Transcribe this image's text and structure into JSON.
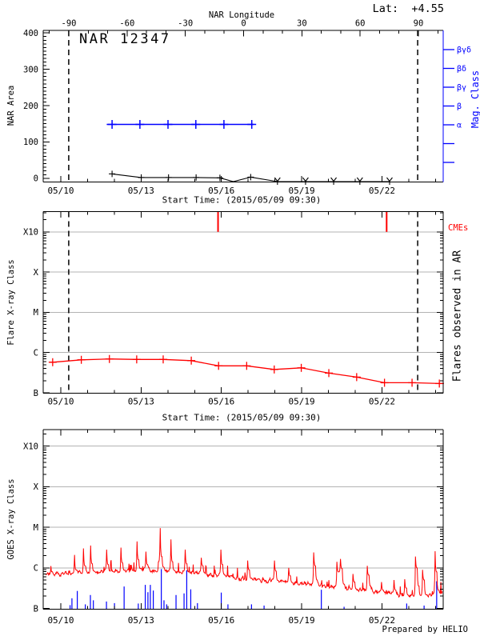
{
  "colors": {
    "accent_red": "#ff0000",
    "accent_blue": "#0000ff",
    "grid_gray": "#b3b3b3",
    "axis_black": "#000000"
  },
  "header": {
    "top_axis_label": "NAR Longitude",
    "latitude_annotation": "Lat:  +4.55"
  },
  "time_axis": {
    "date_tick_labels": [
      "05/10",
      "05/13",
      "05/16",
      "05/19",
      "05/22"
    ],
    "major_tick_days": [
      0.604,
      3.604,
      6.604,
      9.604,
      12.604
    ],
    "minor_tick_interval_days": 1,
    "start_time_label": "Start Time: (2015/05/09 09:30)"
  },
  "chart_data": [
    {
      "type": "line",
      "name": "nar-area-panel",
      "title": "NAR 12347",
      "ylabel": "NAR Area",
      "ylim": [
        0,
        400
      ],
      "yticks": [
        0,
        100,
        200,
        300,
        400
      ],
      "top_axis": {
        "label": "NAR Longitude",
        "ticks_deg": [
          -90,
          -60,
          -30,
          0,
          30,
          60,
          90
        ],
        "minor_step_deg": 10
      },
      "right_axis": {
        "label": "Mag. Class",
        "classes": [
          "βγδ",
          "βδ",
          "βγ",
          "β",
          "α"
        ]
      },
      "limb_crossing_dashed_days": [
        0.9,
        13.94
      ],
      "xlabel": "Start Time: (2015/05/09 09:30)",
      "series": [
        {
          "name": "nar-area",
          "color": "#000000",
          "marker": "plus",
          "points_day_area_flag": [
            [
              2.52,
              12,
              1
            ],
            [
              3.61,
              2,
              1
            ],
            [
              4.63,
              2,
              1
            ],
            [
              5.66,
              2,
              1
            ],
            [
              6.55,
              1,
              1
            ],
            [
              7.05,
              0,
              0
            ],
            [
              7.7,
              3,
              1
            ],
            [
              8.7,
              0,
              2
            ],
            [
              9.75,
              0,
              2
            ],
            [
              10.8,
              0,
              2
            ],
            [
              11.78,
              0,
              2
            ],
            [
              12.89,
              0,
              2
            ]
          ]
        },
        {
          "name": "mag-class",
          "color": "#0000ff",
          "class_value": "α",
          "line_days": [
            2.32,
            7.81
          ],
          "marker_days": [
            2.52,
            3.56,
            4.61,
            5.65,
            6.7,
            7.74
          ]
        }
      ]
    },
    {
      "type": "line",
      "name": "flare-panel",
      "ylabel": "Flare X-ray Class",
      "right_label": "Flares observed in AR",
      "cme_label": "CMEs",
      "y_class_ticks": [
        "B",
        "C",
        "M",
        "X",
        "X10"
      ],
      "line_start_day_logflux": [
        0.18,
        -6.24
      ],
      "line_end_day_logflux": [
        14.92,
        -6.77
      ],
      "flare_points_day_logflux": [
        [
          0.3,
          -6.24
        ],
        [
          1.37,
          -6.18
        ],
        [
          2.42,
          -6.16
        ],
        [
          3.44,
          -6.17
        ],
        [
          4.43,
          -6.17
        ],
        [
          5.48,
          -6.2
        ],
        [
          6.5,
          -6.33
        ],
        [
          7.55,
          -6.33
        ],
        [
          8.58,
          -6.42
        ],
        [
          9.59,
          -6.38
        ],
        [
          10.62,
          -6.51
        ],
        [
          11.66,
          -6.61
        ],
        [
          12.7,
          -6.75
        ],
        [
          13.73,
          -6.75
        ],
        [
          14.75,
          -6.77
        ]
      ],
      "cme_days": [
        6.48,
        12.78
      ],
      "limb_crossing_dashed_days": [
        0.9,
        13.94
      ],
      "xlabel": "Start Time: (2015/05/09 09:30)"
    },
    {
      "type": "line",
      "name": "goes-panel",
      "ylabel": "GOES X-ray Class",
      "y_class_ticks": [
        "B",
        "C",
        "M",
        "X",
        "X10"
      ],
      "credit": "Prepared by HELIO",
      "goes_xray_logflux": {
        "start_day": 0.05,
        "step_day": 0.0667,
        "noise_amplitude_log10": 0.035,
        "needle_amplitude_log10": 0.3,
        "noise_subdivisions": 3,
        "values": [
          -6.18,
          -6.12,
          -6.16,
          -6.08,
          -6.14,
          -6.17,
          -6.1,
          -6.15,
          -6.19,
          -6.13,
          -6.16,
          -6.1,
          -6.15,
          -6.12,
          -6.17,
          -6.13,
          -5.68,
          -6.05,
          -6.12,
          -6.08,
          -6.14,
          -5.52,
          -5.95,
          -6.1,
          -6.13,
          -5.45,
          -5.9,
          -6.08,
          -6.12,
          -6.1,
          -6.12,
          -6.06,
          -6.11,
          -6.04,
          -5.55,
          -5.92,
          -6.08,
          -6.05,
          -6.1,
          -6.03,
          -6.08,
          -6.11,
          -5.5,
          -5.88,
          -6.06,
          -6.09,
          -6.03,
          -6.08,
          -6.0,
          -6.06,
          -6.09,
          -5.35,
          -5.8,
          -6.02,
          -6.07,
          -6.0,
          -5.6,
          -5.92,
          -6.04,
          -6.08,
          -6.08,
          -6.06,
          -6.1,
          -5.85,
          -5.02,
          -5.72,
          -5.98,
          -6.06,
          -6.1,
          -6.04,
          -5.3,
          -5.85,
          -6.06,
          -6.1,
          -6.08,
          -6.1,
          -6.14,
          -6.08,
          -5.55,
          -5.9,
          -6.1,
          -6.13,
          -6.08,
          -6.14,
          -6.1,
          -6.15,
          -6.09,
          -5.75,
          -5.95,
          -6.12,
          -6.16,
          -6.21,
          -6.14,
          -6.19,
          -6.22,
          -6.16,
          -6.2,
          -6.14,
          -5.55,
          -5.92,
          -6.16,
          -6.22,
          -6.18,
          -6.23,
          -6.19,
          -6.24,
          -6.28,
          -6.22,
          -6.27,
          -6.3,
          -6.24,
          -6.28,
          -6.31,
          -5.82,
          -6.05,
          -6.26,
          -6.3,
          -6.25,
          -6.31,
          -6.28,
          -6.3,
          -6.34,
          -6.28,
          -6.33,
          -6.36,
          -6.3,
          -6.34,
          -6.28,
          -5.82,
          -6.08,
          -6.31,
          -6.35,
          -6.3,
          -6.34,
          -6.32,
          -6.35,
          -6.0,
          -6.2,
          -6.36,
          -6.4,
          -6.34,
          -6.38,
          -6.42,
          -6.36,
          -6.4,
          -6.35,
          -6.41,
          -6.38,
          -6.43,
          -6.39,
          -5.62,
          -5.95,
          -6.3,
          -6.44,
          -6.4,
          -6.46,
          -6.42,
          -6.47,
          -6.43,
          -6.48,
          -6.44,
          -6.49,
          -6.45,
          -5.85,
          -6.1,
          -5.78,
          -6.02,
          -6.4,
          -6.5,
          -6.54,
          -6.48,
          -6.53,
          -6.15,
          -6.35,
          -6.52,
          -6.56,
          -6.5,
          -6.55,
          -6.51,
          -6.56,
          -5.95,
          -6.18,
          -6.45,
          -6.58,
          -6.62,
          -6.56,
          -6.61,
          -6.57,
          -6.35,
          -6.55,
          -6.6,
          -6.64,
          -6.58,
          -6.63,
          -6.6,
          -6.3,
          -6.55,
          -6.66,
          -6.7,
          -6.64,
          -6.69,
          -6.28,
          -6.5,
          -6.67,
          -6.71,
          -6.65,
          -6.7,
          -5.72,
          -6.0,
          -6.45,
          -6.68,
          -6.05,
          -6.3,
          -6.66,
          -6.7,
          -6.64,
          -6.69,
          -6.63,
          -5.59,
          -6.1,
          -6.55,
          -6.62,
          -6.58
        ]
      },
      "particle_events_day_logflux": [
        [
          0.95,
          -6.92
        ],
        [
          1.02,
          -6.75
        ],
        [
          1.22,
          -6.57
        ],
        [
          1.52,
          -6.9
        ],
        [
          1.71,
          -6.67
        ],
        [
          1.82,
          -6.8
        ],
        [
          2.31,
          -6.83
        ],
        [
          2.61,
          -6.87
        ],
        [
          2.97,
          -6.46
        ],
        [
          3.5,
          -6.88
        ],
        [
          3.76,
          -6.42
        ],
        [
          3.86,
          -6.6
        ],
        [
          3.95,
          -6.42
        ],
        [
          4.06,
          -6.56
        ],
        [
          4.36,
          -6.03
        ],
        [
          4.46,
          -6.8
        ],
        [
          4.56,
          -6.9
        ],
        [
          4.91,
          -6.67
        ],
        [
          5.21,
          -6.63
        ],
        [
          5.31,
          -6.06
        ],
        [
          5.46,
          -6.53
        ],
        [
          5.71,
          -6.87
        ],
        [
          6.6,
          -6.61
        ],
        [
          6.85,
          -6.9
        ],
        [
          7.73,
          -6.9
        ],
        [
          8.2,
          -6.93
        ],
        [
          10.34,
          -6.54
        ],
        [
          11.19,
          -6.96
        ],
        [
          13.53,
          -6.88
        ],
        [
          14.18,
          -6.93
        ],
        [
          14.65,
          -6.33
        ]
      ]
    }
  ]
}
